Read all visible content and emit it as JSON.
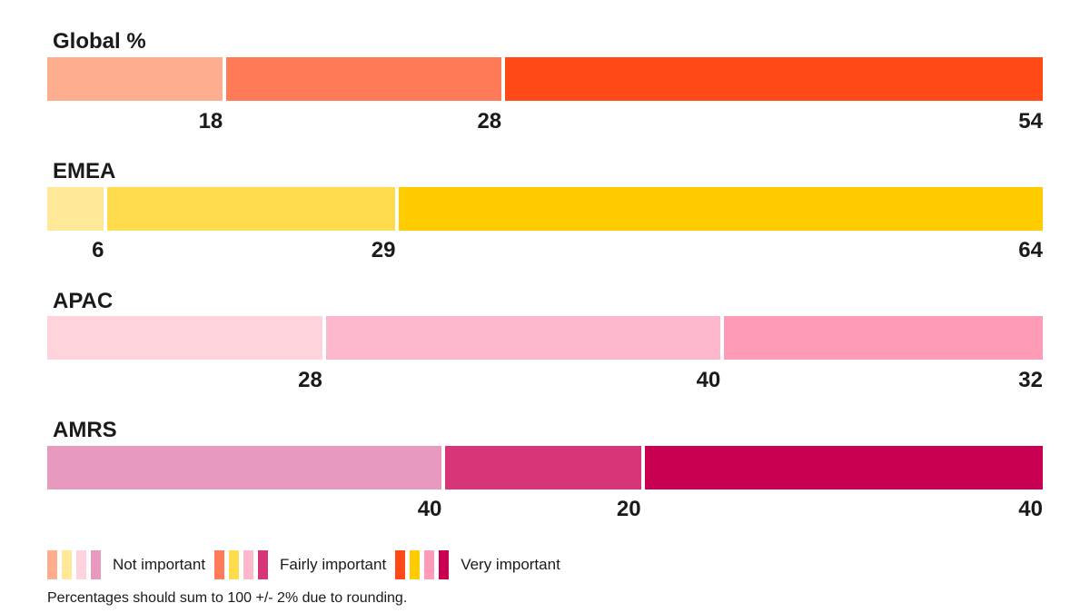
{
  "chart_data": {
    "type": "bar",
    "stacked": true,
    "orientation": "horizontal",
    "xlim": [
      0,
      100
    ],
    "categories": [
      "Not important",
      "Fairly important",
      "Very important"
    ],
    "groups": [
      {
        "title": "Global %",
        "values": [
          18,
          28,
          54
        ],
        "colors": [
          "#FFAD8F",
          "#FF7A57",
          "#FF4A17"
        ]
      },
      {
        "title": "EMEA",
        "values": [
          6,
          29,
          64
        ],
        "colors": [
          "#FFE999",
          "#FFDC4D",
          "#FFCC00"
        ]
      },
      {
        "title": "APAC",
        "values": [
          28,
          40,
          32
        ],
        "colors": [
          "#FFD3DC",
          "#FEB8CB",
          "#FE9BB6"
        ]
      },
      {
        "title": "AMRS",
        "values": [
          40,
          20,
          40
        ],
        "colors": [
          "#E899BE",
          "#D83579",
          "#C90052"
        ]
      }
    ],
    "legend": [
      {
        "label": "Not important",
        "swatches": [
          "#FFAD8F",
          "#FFE999",
          "#FFD3DC",
          "#E899BE"
        ]
      },
      {
        "label": "Fairly important",
        "swatches": [
          "#FF7A57",
          "#FFDC4D",
          "#FEB8CB",
          "#D83579"
        ]
      },
      {
        "label": "Very important",
        "swatches": [
          "#FF4A17",
          "#FFCC00",
          "#FE9BB6",
          "#C90052"
        ]
      }
    ],
    "legend_position": "bottom-left",
    "grid": false
  },
  "footnote": "Percentages should sum to 100 +/- 2% due to rounding."
}
